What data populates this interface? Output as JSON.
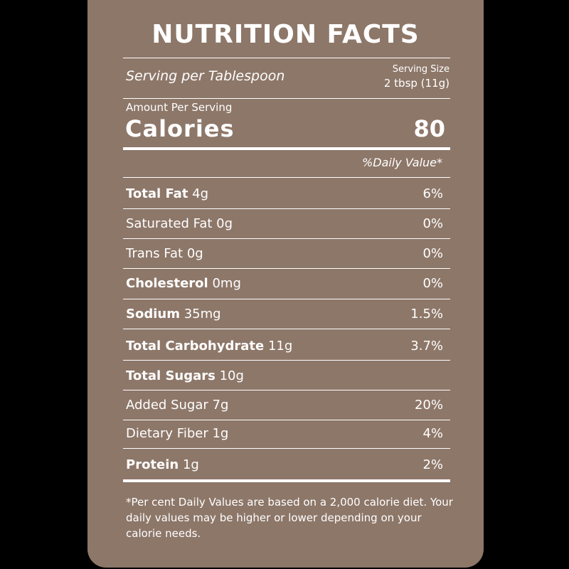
{
  "label": {
    "title": "NUTRITION FACTS",
    "serving_per": "Serving per Tablespoon",
    "serving_size_label": "Serving Size",
    "serving_size_value": "2 tbsp (11g)",
    "amount_per_serving": "Amount Per Serving",
    "calories_label": "Calories",
    "calories_value": "80",
    "daily_value_header": "%Daily Value*",
    "nutrients": [
      {
        "name": "Total Fat",
        "amount": "4g",
        "dv": "6%"
      },
      {
        "name": "Saturated Fat",
        "amount": "0g",
        "dv": "0%"
      },
      {
        "name": "Trans Fat",
        "amount": "0g",
        "dv": "0%"
      },
      {
        "name": "Cholesterol",
        "amount": "0mg",
        "dv": "0%"
      },
      {
        "name": "Sodium",
        "amount": "35mg",
        "dv": "1.5%"
      },
      {
        "name": "Total Carbohydrate",
        "amount": "11g",
        "dv": "3.7%"
      },
      {
        "name": "Total Sugars",
        "amount": "10g",
        "dv": ""
      },
      {
        "name": "Added Sugar",
        "amount": "7g",
        "dv": "20%"
      },
      {
        "name": "Dietary Fiber",
        "amount": "1g",
        "dv": "4%"
      },
      {
        "name": "Protein",
        "amount": "1g",
        "dv": "2%"
      }
    ],
    "footnote": "*Per cent Daily Values are based on a 2,000 calorie diet. Your daily values may be higher or lower depending on your calorie needs."
  },
  "colors": {
    "background": "#000000",
    "panel": "#8d7769",
    "text": "#ffffff"
  }
}
